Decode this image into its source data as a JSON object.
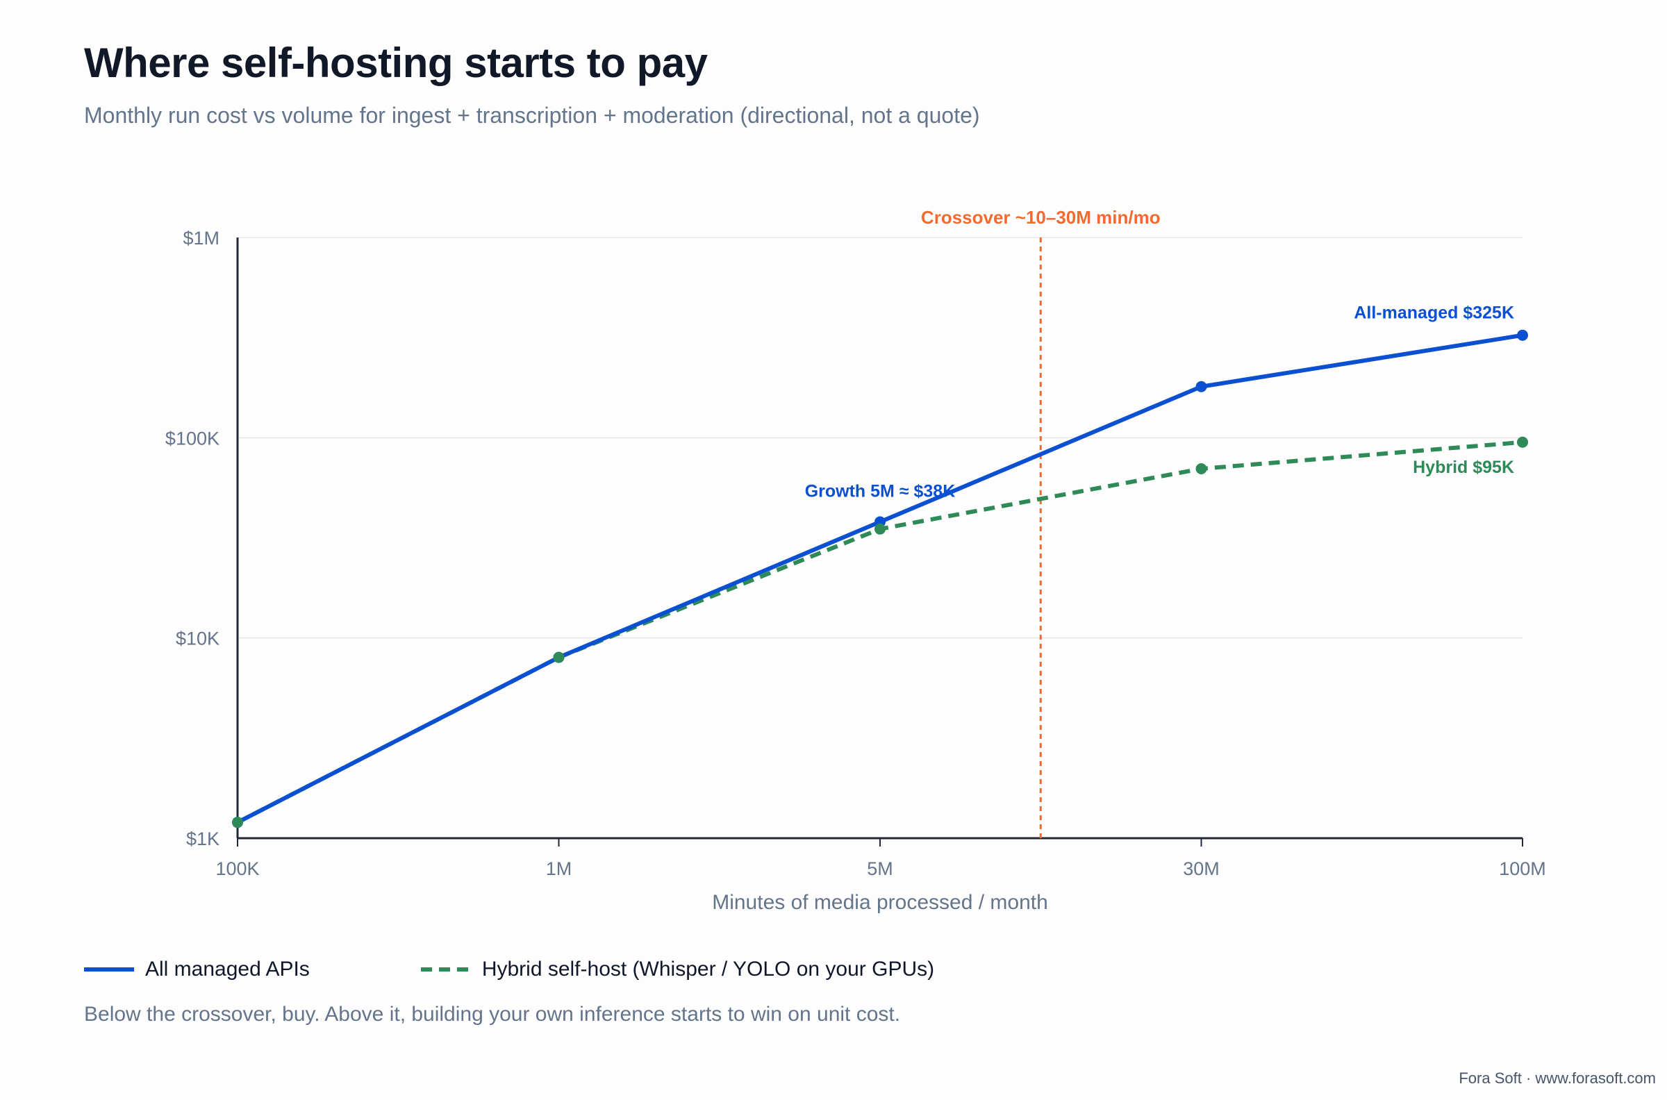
{
  "header": {
    "title": "Where self-hosting starts to pay",
    "subtitle": "Monthly run cost vs volume for ingest + transcription + moderation (directional, not a quote)"
  },
  "chart_data": {
    "type": "line",
    "xlabel": "Minutes of media processed / month",
    "ylabel": "",
    "x_categories": [
      "100K",
      "1M",
      "5M",
      "30M",
      "100M"
    ],
    "y_scale": "log",
    "ylim": [
      1000,
      1000000
    ],
    "y_ticks": [
      {
        "value": 1000,
        "label": "$1K"
      },
      {
        "value": 10000,
        "label": "$10K"
      },
      {
        "value": 100000,
        "label": "$100K"
      },
      {
        "value": 1000000,
        "label": "$1M"
      }
    ],
    "grid": true,
    "series": [
      {
        "name": "All managed APIs",
        "color": "#0b50d0",
        "style": "solid",
        "values": [
          1200,
          8000,
          38000,
          180000,
          325000
        ]
      },
      {
        "name": "Hybrid self-host (Whisper / YOLO on your GPUs)",
        "color": "#2e8b57",
        "style": "dashed",
        "values": [
          1200,
          8000,
          35000,
          70000,
          95000
        ]
      }
    ],
    "crossover": {
      "label": "Crossover ~10–30M min/mo",
      "position_between": [
        "5M",
        "30M"
      ],
      "color": "#f26a30"
    },
    "annotations": [
      {
        "text": "Growth 5M ≈ $38K",
        "series": 0,
        "point": 2,
        "color": "#0b50d0"
      },
      {
        "text": "All-managed $325K",
        "series": 0,
        "point": 4,
        "color": "#0b50d0"
      },
      {
        "text": "Hybrid $95K",
        "series": 1,
        "point": 4,
        "color": "#2e8b57"
      }
    ]
  },
  "legend": {
    "items": [
      {
        "label": "All managed APIs"
      },
      {
        "label": "Hybrid self-host (Whisper / YOLO on your GPUs)"
      }
    ]
  },
  "note": "Below the crossover, buy. Above it, building your own inference starts to win on unit cost.",
  "footer": "Fora Soft · www.forasoft.com"
}
